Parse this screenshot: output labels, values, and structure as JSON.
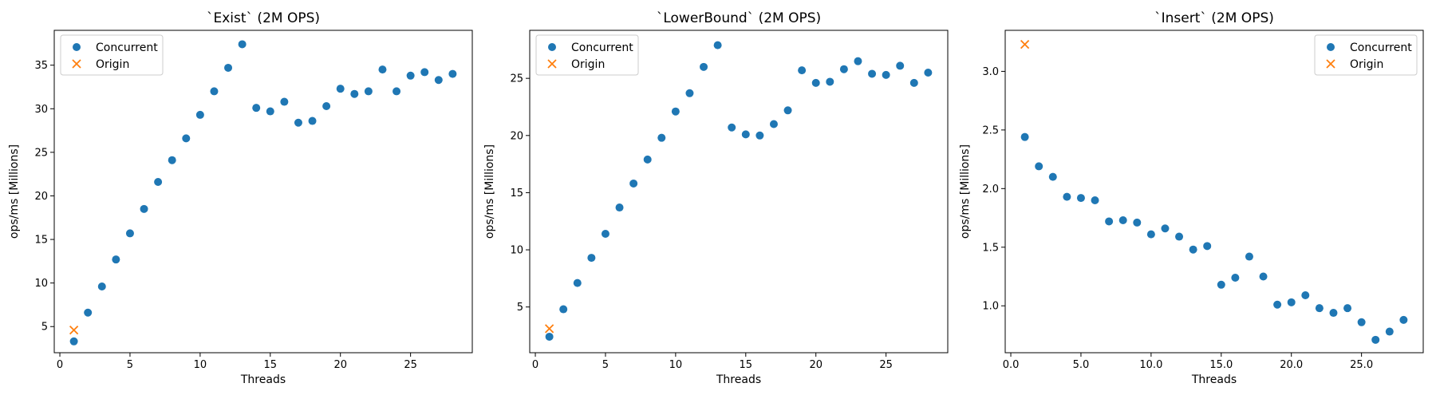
{
  "chart_data": [
    {
      "type": "scatter",
      "title": "`Exist` (2M OPS)",
      "xlabel": "Threads",
      "ylabel": "ops/ms [Millions]",
      "xlim": [
        -0.4,
        29.4
      ],
      "ylim": [
        2.0,
        39.0
      ],
      "xticks": [
        0,
        5,
        10,
        15,
        20,
        25
      ],
      "yticks": [
        5,
        10,
        15,
        20,
        25,
        30,
        35
      ],
      "legend_position": "upper-left",
      "grid": false,
      "series": [
        {
          "name": "Concurrent",
          "marker": "circle",
          "color": "#1f77b4",
          "x": [
            1,
            2,
            3,
            4,
            5,
            6,
            7,
            8,
            9,
            10,
            11,
            12,
            13,
            14,
            15,
            16,
            17,
            18,
            19,
            20,
            21,
            22,
            23,
            24,
            25,
            26,
            27,
            28
          ],
          "y": [
            3.3,
            6.6,
            9.6,
            12.7,
            15.7,
            18.5,
            21.6,
            24.1,
            26.6,
            29.3,
            32.0,
            34.7,
            37.4,
            30.1,
            29.7,
            30.8,
            28.4,
            28.6,
            30.3,
            32.3,
            31.7,
            32.0,
            34.5,
            32.0,
            33.8,
            34.2,
            33.3,
            34.0
          ]
        },
        {
          "name": "Origin",
          "marker": "x",
          "color": "#ff7f0e",
          "x": [
            1
          ],
          "y": [
            4.6
          ]
        }
      ]
    },
    {
      "type": "scatter",
      "title": "`LowerBound` (2M OPS)",
      "xlabel": "Threads",
      "ylabel": "ops/ms [Millions]",
      "xlim": [
        -0.4,
        29.4
      ],
      "ylim": [
        1.0,
        29.2
      ],
      "xticks": [
        0,
        5,
        10,
        15,
        20,
        25
      ],
      "yticks": [
        5,
        10,
        15,
        20,
        25
      ],
      "legend_position": "upper-left",
      "grid": false,
      "series": [
        {
          "name": "Concurrent",
          "marker": "circle",
          "color": "#1f77b4",
          "x": [
            1,
            2,
            3,
            4,
            5,
            6,
            7,
            8,
            9,
            10,
            11,
            12,
            13,
            14,
            15,
            16,
            17,
            18,
            19,
            20,
            21,
            22,
            23,
            24,
            25,
            26,
            27,
            28
          ],
          "y": [
            2.4,
            4.8,
            7.1,
            9.3,
            11.4,
            13.7,
            15.8,
            17.9,
            19.8,
            22.1,
            23.7,
            26.0,
            27.9,
            20.7,
            20.1,
            20.0,
            21.0,
            22.2,
            25.7,
            24.6,
            24.7,
            25.8,
            26.5,
            25.4,
            25.3,
            26.1,
            24.6,
            25.5
          ]
        },
        {
          "name": "Origin",
          "marker": "x",
          "color": "#ff7f0e",
          "x": [
            1
          ],
          "y": [
            3.1
          ]
        }
      ]
    },
    {
      "type": "scatter",
      "title": "`Insert` (2M OPS)",
      "xlabel": "Threads",
      "ylabel": "ops/ms [Millions]",
      "xlim": [
        -0.4,
        29.4
      ],
      "ylim": [
        0.6,
        3.35
      ],
      "xticks": [
        0,
        5,
        10,
        15,
        20,
        25
      ],
      "yticks": [
        1.0,
        1.5,
        2.0,
        2.5,
        3.0
      ],
      "tick_decimals": 1,
      "legend_position": "upper-right",
      "grid": false,
      "series": [
        {
          "name": "Concurrent",
          "marker": "circle",
          "color": "#1f77b4",
          "x": [
            1,
            2,
            3,
            4,
            5,
            6,
            7,
            8,
            9,
            10,
            11,
            12,
            13,
            14,
            15,
            16,
            17,
            18,
            19,
            20,
            21,
            22,
            23,
            24,
            25,
            26,
            27,
            28
          ],
          "y": [
            2.44,
            2.19,
            2.1,
            1.93,
            1.92,
            1.9,
            1.72,
            1.73,
            1.71,
            1.61,
            1.66,
            1.59,
            1.48,
            1.51,
            1.18,
            1.24,
            1.42,
            1.25,
            1.01,
            1.03,
            1.09,
            0.98,
            0.94,
            0.98,
            0.86,
            0.71,
            0.78,
            0.88
          ]
        },
        {
          "name": "Origin",
          "marker": "x",
          "color": "#ff7f0e",
          "x": [
            1
          ],
          "y": [
            3.23
          ]
        }
      ]
    }
  ]
}
